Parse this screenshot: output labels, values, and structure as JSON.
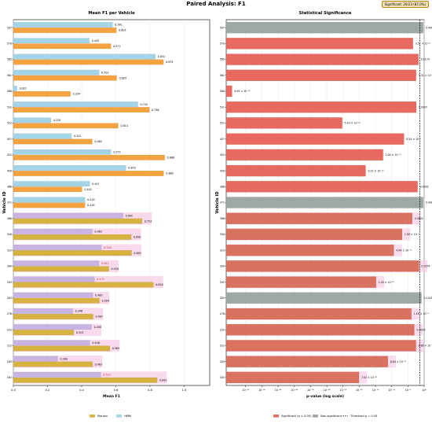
{
  "page": {
    "suptitle": "Paired Analysis: F1",
    "badge": "Significant: 20/23 (87.0%)"
  },
  "colors": {
    "markov": "#f4a340",
    "hmm": "#a3d4e7",
    "hmm_pair": "#c9b3e3",
    "markov_pair": "#d6b23f",
    "sig": "#e8695f",
    "nonsig": "#9ea9a4",
    "highlight": "#f7cde5"
  },
  "chart_data": [
    {
      "type": "bar",
      "orientation": "horizontal",
      "title": "Mean F1 per Vehicle",
      "xlabel": "Mean F1",
      "ylabel": "Vehicle ID",
      "xlim": [
        0,
        1.15
      ],
      "xticks": [
        0.0,
        0.2,
        0.4,
        0.6,
        0.8,
        1.0
      ],
      "grid": true,
      "legend_position": "bottom",
      "categories": [
        "597",
        "570",
        "565",
        "561",
        "560",
        "531",
        "522",
        "457",
        "452",
        "450",
        "386",
        "371",
        "366",
        "340",
        "323",
        "309",
        "292",
        "283",
        "276",
        "232",
        "222",
        "185",
        "181"
      ],
      "highlighted": [
        "366",
        "340",
        "323",
        "309",
        "292",
        "283",
        "276",
        "232",
        "222",
        "185",
        "181"
      ],
      "series": [
        {
          "name": "HMM",
          "values": [
            0.581,
            0.445,
            0.832,
            0.502,
            0.021,
            0.729,
            0.22,
            0.341,
            0.572,
            0.659,
            0.447,
            0.419,
            0.642,
            0.462,
            0.516,
            0.501,
            0.475,
            0.465,
            0.348,
            0.458,
            0.448,
            0.26,
            0.512
          ],
          "labels": [
            "0.581",
            "0.445",
            "0.832",
            "0.502",
            "0.021",
            "0.729",
            "0.220",
            "0.341",
            "0.572",
            "0.659",
            "0.447",
            "0.419",
            "0.642",
            "0.462",
            "0.516",
            "0.501",
            "0.475",
            "0.465",
            "0.348",
            "0.458",
            "0.448",
            "0.260",
            "0.512"
          ]
        },
        {
          "name": "Markov",
          "values": [
            0.603,
            0.571,
            0.879,
            0.605,
            0.334,
            0.796,
            0.614,
            0.462,
            0.886,
            0.88,
            0.402,
            0.419,
            0.753,
            0.69,
            0.692,
            0.559,
            0.82,
            0.504,
            0.467,
            0.353,
            0.565,
            0.463,
            0.842
          ],
          "labels": [
            "0.603",
            "0.571",
            "0.879",
            "0.605",
            "0.334",
            "0.796",
            "0.614",
            "0.462",
            "0.886",
            "0.880",
            "0.402",
            "0.419",
            "0.753",
            "0.690",
            "0.692",
            "0.559",
            "0.820",
            "0.504",
            "0.467",
            "0.353",
            "0.565",
            "0.463",
            "0.842"
          ]
        }
      ],
      "legend": [
        "Markov",
        "HMM"
      ]
    },
    {
      "type": "bar",
      "orientation": "horizontal",
      "title": "Statistical Significance",
      "xlabel": "p-value (log scale)",
      "ylabel": "Vehicle ID",
      "xscale": "log",
      "xlim_exp": [
        -61,
        0
      ],
      "xtick_exps": [
        -55,
        -50,
        -45,
        -40,
        -35,
        -30,
        -25,
        -20,
        -15,
        -10,
        -5,
        0
      ],
      "xtick_labels": [
        "10⁻⁵⁵",
        "10⁻⁵⁰",
        "10⁻⁴⁵",
        "10⁻⁴⁰",
        "10⁻³⁵",
        "10⁻³⁰",
        "10⁻²⁵",
        "10⁻²⁰",
        "10⁻¹⁵",
        "10⁻¹⁰",
        "10⁻⁵",
        "10⁰"
      ],
      "threshold": 0.05,
      "grid": true,
      "legend_position": "bottom",
      "categories": [
        "597",
        "570",
        "565",
        "561",
        "560",
        "531",
        "522",
        "457",
        "452",
        "450",
        "386",
        "371",
        "366",
        "340",
        "323",
        "309",
        "292",
        "283",
        "276",
        "232",
        "222",
        "185",
        "181"
      ],
      "significant": [
        false,
        true,
        true,
        true,
        true,
        true,
        true,
        true,
        true,
        true,
        true,
        false,
        true,
        true,
        true,
        true,
        true,
        false,
        true,
        true,
        true,
        true,
        true
      ],
      "p_values": [
        0.4968,
        0.000351,
        0.0174,
        0.00331,
        6.09e-60,
        0.0037,
        5.43e-26,
        6.24e-07,
        2.04e-13,
        9.22e-19,
        0.0092,
        0.4985,
        0.0002,
        1.58e-07,
        4.44e-10,
        0.0254,
        1.45e-15,
        0.1441,
        0.000115,
        0.0009,
        0.00286,
        6.84e-12,
        7.92e-21
      ],
      "p_labels": [
        "0.4968",
        "3.51 × 10⁻⁴",
        "0.0174",
        "3.31 × 10⁻³",
        "6.09 × 10⁻⁶⁰",
        "0.0037",
        "5.43 × 10⁻²⁶",
        "6.24 × 10⁻⁷",
        "2.04 × 10⁻¹³",
        "9.22 × 10⁻¹⁹",
        "0.0092",
        "0.4985",
        "0.0002",
        "1.58 × 10⁻⁷",
        "4.44 × 10⁻¹⁰",
        "0.0254",
        "1.45 × 10⁻¹⁵",
        "0.1441",
        "1.15 × 10⁻⁴",
        "0.0009",
        "2.86 × 10⁻³",
        "6.84 × 10⁻¹²",
        "7.92 × 10⁻²¹"
      ],
      "legend": [
        "Significant (p < 0.05)",
        "Non-significant",
        "Threshold p = 0.05"
      ]
    }
  ]
}
